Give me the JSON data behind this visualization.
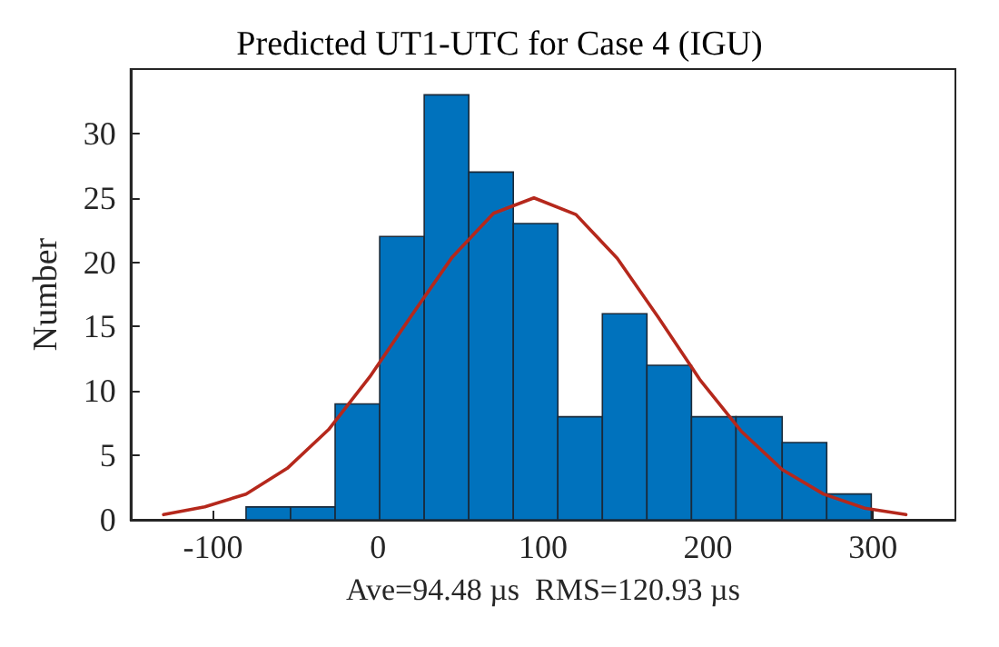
{
  "chart_data": {
    "type": "histogram",
    "title": "Predicted UT1-UTC for Case 4 (IGU)",
    "xlabel": "Ave=94.48 µs  RMS=120.93 µs",
    "ylabel": "Number",
    "bins": [
      -80,
      -53,
      -26,
      1,
      28,
      55,
      82,
      109,
      136,
      163,
      190,
      217,
      245,
      272,
      299
    ],
    "values": [
      1,
      1,
      9,
      22,
      33,
      27,
      23,
      8,
      16,
      12,
      8,
      8,
      6,
      2
    ],
    "color": "#0072bd",
    "series": [
      {
        "type": "line",
        "color": "#b5281c",
        "marker": "none",
        "line_style": "solid",
        "x": [
          -130,
          -105,
          -80,
          -55,
          -30,
          -5,
          20,
          45,
          70,
          94.5,
          120,
          145,
          170,
          195,
          220,
          245,
          270,
          295,
          320
        ],
        "values": [
          0.4,
          1.0,
          2.0,
          4.0,
          7.0,
          11.1,
          15.8,
          20.4,
          23.8,
          25,
          23.7,
          20.3,
          15.7,
          10.9,
          6.9,
          3.9,
          2.0,
          0.9,
          0.4
        ]
      }
    ],
    "xlim": [
      -150,
      350
    ],
    "xticks": [
      -100,
      0,
      100,
      200,
      300
    ],
    "ylim": [
      0,
      35
    ],
    "yticks": [
      0,
      5,
      10,
      15,
      20,
      25,
      30
    ],
    "grid": false
  }
}
